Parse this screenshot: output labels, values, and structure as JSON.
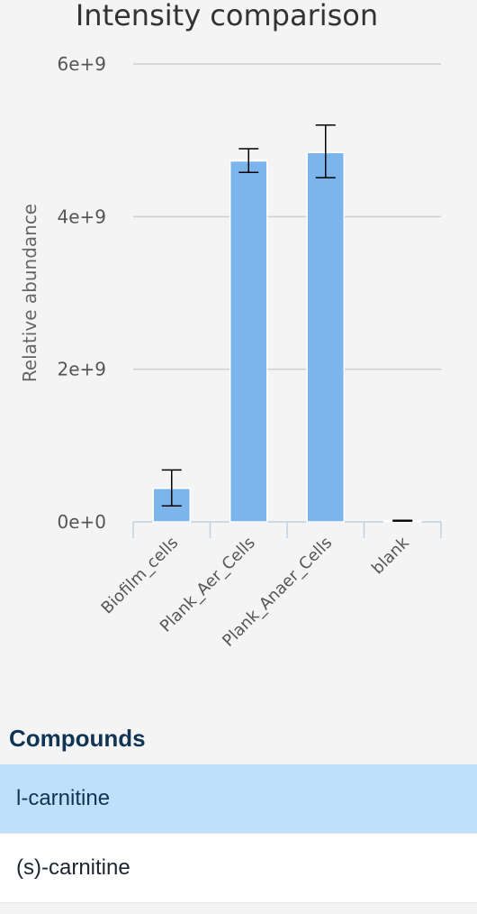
{
  "chart_data": {
    "type": "bar",
    "title": "Intensity comparison",
    "xlabel": "",
    "ylabel": "Relative abundance",
    "ylim": [
      0,
      6000000000
    ],
    "yticks": [
      0,
      2000000000,
      4000000000,
      6000000000
    ],
    "ytick_labels": [
      "0e+0",
      "2e+9",
      "4e+9",
      "6e+9"
    ],
    "grid": true,
    "categories": [
      "Biofilm_cells",
      "Plank_Aer_Cells",
      "Plank_Anaer_Cells",
      "blank"
    ],
    "values": [
      440000000,
      4730000000,
      4840000000,
      15000000
    ],
    "error_low": [
      210000000,
      4580000000,
      4510000000,
      10000000
    ],
    "error_high": [
      680000000,
      4890000000,
      5200000000,
      20000000
    ],
    "bar_color": "#7cb5ec"
  },
  "compounds": {
    "title": "Compounds",
    "items": [
      {
        "label": "l-carnitine",
        "selected": true
      },
      {
        "label": "(s)-carnitine",
        "selected": false
      }
    ]
  }
}
